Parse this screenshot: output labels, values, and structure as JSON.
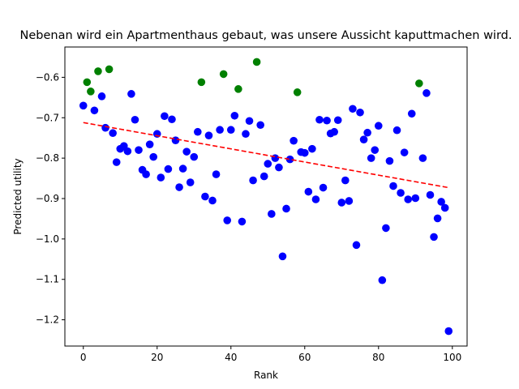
{
  "chart_data": {
    "type": "scatter",
    "title": "Nebenan wird ein Apartmenthaus gebaut, was unsere Aussicht kaputtmachen wird.",
    "xlabel": "Rank",
    "ylabel": "Predicted utility",
    "xlim": [
      -5,
      104
    ],
    "ylim": [
      -1.265,
      -0.525
    ],
    "xticks": [
      0,
      20,
      40,
      60,
      80,
      100
    ],
    "yticks": [
      -1.2,
      -1.1,
      -1.0,
      -0.9,
      -0.8,
      -0.7,
      -0.6
    ],
    "xtick_labels": [
      "0",
      "20",
      "40",
      "60",
      "80",
      "100"
    ],
    "ytick_labels": [
      "−1.2",
      "−1.1",
      "−1.0",
      "−0.9",
      "−0.8",
      "−0.7",
      "−0.6"
    ],
    "grid": false,
    "colors": {
      "blue": "#0000ff",
      "green": "#008000",
      "trend": "#ff0000"
    },
    "series": [
      {
        "color": "blue",
        "points": [
          [
            0,
            -0.67
          ],
          [
            3,
            -0.682
          ],
          [
            5,
            -0.647
          ],
          [
            6,
            -0.725
          ],
          [
            8,
            -0.738
          ],
          [
            9,
            -0.81
          ],
          [
            10,
            -0.777
          ],
          [
            11,
            -0.77
          ],
          [
            12,
            -0.783
          ],
          [
            13,
            -0.641
          ],
          [
            14,
            -0.705
          ],
          [
            15,
            -0.78
          ],
          [
            16,
            -0.829
          ],
          [
            17,
            -0.84
          ],
          [
            18,
            -0.766
          ],
          [
            19,
            -0.797
          ],
          [
            20,
            -0.74
          ],
          [
            21,
            -0.848
          ],
          [
            22,
            -0.696
          ],
          [
            23,
            -0.827
          ],
          [
            24,
            -0.704
          ],
          [
            25,
            -0.756
          ],
          [
            26,
            -0.872
          ],
          [
            27,
            -0.826
          ],
          [
            28,
            -0.784
          ],
          [
            29,
            -0.86
          ],
          [
            30,
            -0.797
          ],
          [
            31,
            -0.735
          ],
          [
            33,
            -0.895
          ],
          [
            34,
            -0.744
          ],
          [
            35,
            -0.905
          ],
          [
            36,
            -0.84
          ],
          [
            37,
            -0.73
          ],
          [
            39,
            -0.954
          ],
          [
            40,
            -0.73
          ],
          [
            41,
            -0.695
          ],
          [
            43,
            -0.957
          ],
          [
            44,
            -0.74
          ],
          [
            45,
            -0.708
          ],
          [
            46,
            -0.855
          ],
          [
            48,
            -0.718
          ],
          [
            49,
            -0.845
          ],
          [
            50,
            -0.814
          ],
          [
            51,
            -0.938
          ],
          [
            52,
            -0.8
          ],
          [
            53,
            -0.823
          ],
          [
            54,
            -1.043
          ],
          [
            55,
            -0.925
          ],
          [
            56,
            -0.803
          ],
          [
            57,
            -0.757
          ],
          [
            59,
            -0.785
          ],
          [
            60,
            -0.787
          ],
          [
            61,
            -0.883
          ],
          [
            62,
            -0.777
          ],
          [
            63,
            -0.902
          ],
          [
            64,
            -0.705
          ],
          [
            65,
            -0.873
          ],
          [
            66,
            -0.707
          ],
          [
            67,
            -0.739
          ],
          [
            68,
            -0.735
          ],
          [
            69,
            -0.706
          ],
          [
            70,
            -0.91
          ],
          [
            71,
            -0.855
          ],
          [
            72,
            -0.906
          ],
          [
            73,
            -0.678
          ],
          [
            74,
            -1.015
          ],
          [
            75,
            -0.687
          ],
          [
            76,
            -0.754
          ],
          [
            77,
            -0.737
          ],
          [
            78,
            -0.8
          ],
          [
            79,
            -0.78
          ],
          [
            80,
            -0.72
          ],
          [
            81,
            -1.102
          ],
          [
            82,
            -0.973
          ],
          [
            83,
            -0.807
          ],
          [
            84,
            -0.869
          ],
          [
            85,
            -0.731
          ],
          [
            86,
            -0.886
          ],
          [
            87,
            -0.786
          ],
          [
            88,
            -0.902
          ],
          [
            89,
            -0.69
          ],
          [
            90,
            -0.899
          ],
          [
            92,
            -0.8
          ],
          [
            93,
            -0.639
          ],
          [
            94,
            -0.891
          ],
          [
            95,
            -0.995
          ],
          [
            96,
            -0.949
          ],
          [
            97,
            -0.908
          ],
          [
            98,
            -0.923
          ],
          [
            99,
            -1.228
          ]
        ]
      },
      {
        "color": "green",
        "points": [
          [
            1,
            -0.612
          ],
          [
            2,
            -0.635
          ],
          [
            4,
            -0.585
          ],
          [
            7,
            -0.58
          ],
          [
            32,
            -0.612
          ],
          [
            38,
            -0.592
          ],
          [
            42,
            -0.629
          ],
          [
            47,
            -0.562
          ],
          [
            58,
            -0.637
          ],
          [
            91,
            -0.615
          ]
        ]
      }
    ],
    "trend_line": {
      "x": [
        0,
        99
      ],
      "y": [
        -0.712,
        -0.873
      ],
      "style": "dashed",
      "color": "trend"
    }
  }
}
